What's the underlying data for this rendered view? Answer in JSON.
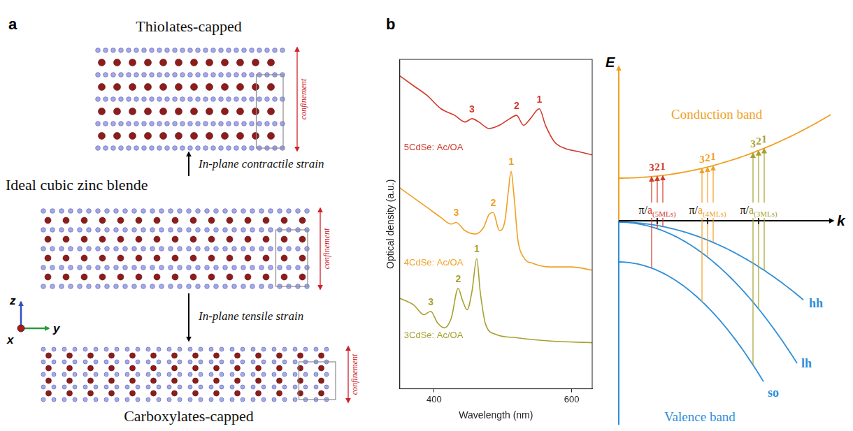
{
  "panel_a": {
    "letter": "a",
    "top_title": "Thiolates-capped",
    "middle_title": "Ideal cubic zinc blende",
    "bottom_title": "Carboxylates-capped",
    "up_arrow_label": "In-plane contractile strain",
    "down_arrow_label": "In-plane tensile strain",
    "confinement_label": "confinement",
    "axes": {
      "z": "z",
      "x": "x",
      "y": "y"
    }
  },
  "chart_data": {
    "type": "line",
    "x_label": "Wavelength (nm)",
    "y_label": "Optical density (a.u.)",
    "xlim": [
      350,
      630
    ],
    "xticks": [
      400,
      600
    ],
    "ylim": [
      0,
      10
    ],
    "tick_labels": "x",
    "grid": false,
    "series": [
      {
        "name": "5CdSe: Ac/OA",
        "color": "#d23a2a",
        "x": [
          350,
          370,
          390,
          410,
          430,
          445,
          455,
          465,
          480,
          495,
          510,
          520,
          530,
          540,
          553,
          562,
          575,
          590,
          610,
          630
        ],
        "values": [
          9.5,
          9.2,
          8.9,
          8.5,
          8.3,
          8.1,
          8.2,
          8.1,
          7.9,
          8.0,
          8.2,
          8.3,
          8.0,
          8.2,
          8.5,
          8.0,
          7.5,
          7.3,
          7.2,
          7.1
        ],
        "peaks": [
          {
            "label": "3",
            "x": 455
          },
          {
            "label": "2",
            "x": 520
          },
          {
            "label": "1",
            "x": 553
          }
        ]
      },
      {
        "name": "4CdSe: Ac/OA",
        "color": "#f0a024",
        "x": [
          350,
          370,
          390,
          410,
          425,
          432,
          445,
          460,
          472,
          480,
          486,
          495,
          503,
          508,
          512,
          516,
          522,
          530,
          545,
          570,
          600,
          630
        ],
        "values": [
          6.1,
          5.8,
          5.5,
          5.2,
          5.0,
          5.05,
          4.8,
          4.7,
          4.9,
          5.3,
          5.35,
          4.8,
          5.1,
          6.0,
          6.6,
          5.9,
          4.5,
          4.0,
          3.8,
          3.7,
          3.7,
          3.6
        ],
        "peaks": [
          {
            "label": "3",
            "x": 432
          },
          {
            "label": "2",
            "x": 486
          },
          {
            "label": "1",
            "x": 512
          }
        ]
      },
      {
        "name": "3CdSe: Ac/OA",
        "color": "#a8a030",
        "x": [
          350,
          370,
          385,
          395,
          405,
          415,
          425,
          435,
          441,
          448,
          455,
          462,
          467,
          475,
          490,
          520,
          570,
          630
        ],
        "values": [
          2.75,
          2.55,
          2.25,
          2.35,
          2.0,
          1.85,
          2.15,
          3.05,
          2.7,
          2.4,
          2.95,
          3.95,
          2.95,
          1.95,
          1.65,
          1.55,
          1.45,
          1.4
        ],
        "peaks": [
          {
            "label": "3",
            "x": 395
          },
          {
            "label": "2",
            "x": 435
          },
          {
            "label": "1",
            "x": 462
          }
        ]
      }
    ]
  },
  "panel_b": {
    "letter": "b",
    "band_diagram": {
      "energy_axis": "E",
      "k_axis": "k",
      "conduction_band": "Conduction band",
      "conduction_color": "#f0a024",
      "valence_band": "Valence band",
      "valence_color": "#2f8fd8",
      "valence_subbands": [
        "hh",
        "lh",
        "so"
      ],
      "groups": [
        {
          "prefix": "π/",
          "symbol": "a",
          "subscript": "(5MLs)",
          "color": "#d23a2a",
          "transitions": [
            "3",
            "2",
            "1"
          ]
        },
        {
          "prefix": "π/",
          "symbol": "a",
          "subscript": "(4MLs)",
          "color": "#f0a024",
          "transitions": [
            "3",
            "2",
            "1"
          ]
        },
        {
          "prefix": "π/",
          "symbol": "a",
          "subscript": "(3MLs)",
          "color": "#a8a030",
          "transitions": [
            "3",
            "2",
            "1"
          ]
        }
      ]
    }
  }
}
